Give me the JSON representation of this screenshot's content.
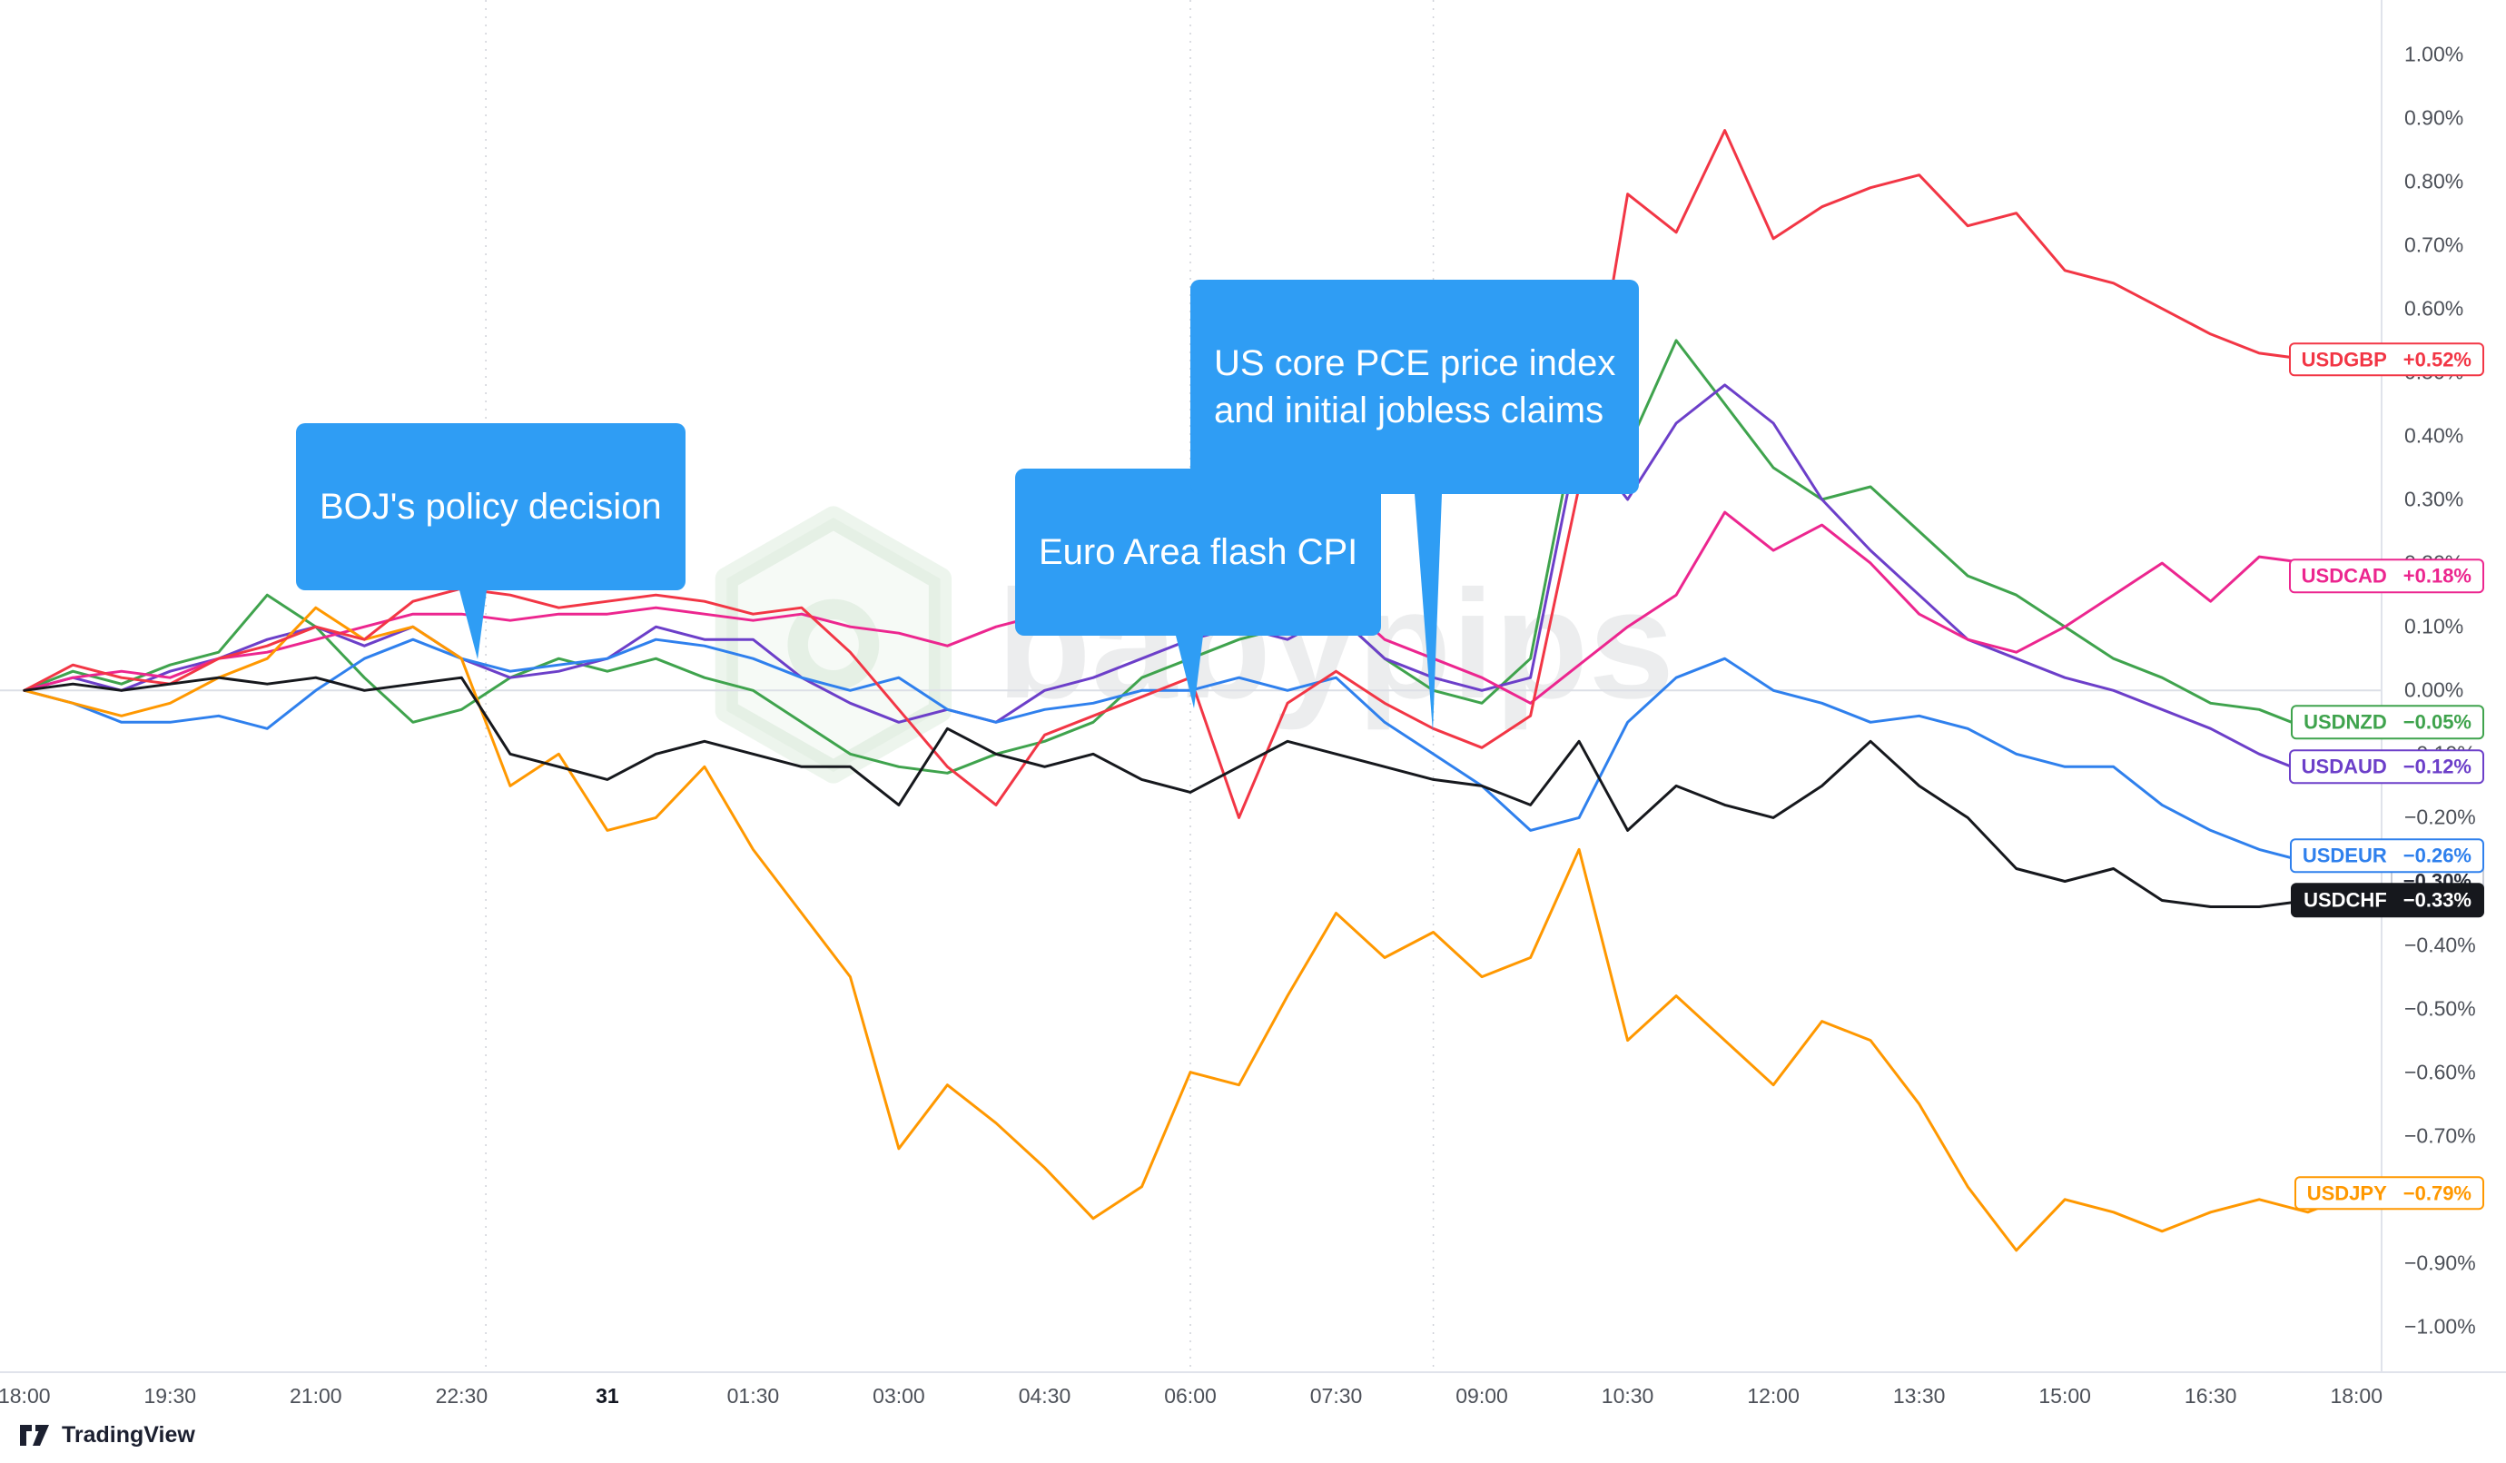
{
  "annotation_color": "#2f9df4",
  "watermark": {
    "text": "babypips"
  },
  "footer": {
    "logo_text": "TradingView"
  },
  "chart_data": {
    "type": "line",
    "title": "",
    "xlabel": "",
    "ylabel": "",
    "xlim": [
      -0.25,
      24.25
    ],
    "ylim": [
      -1.07,
      1.085
    ],
    "grid": "zero-line and event verticals only",
    "legend_position": "right-edge price labels",
    "x_unit": "hours since 18:00",
    "x_start": 0,
    "x_step": 0.5,
    "x_ticks": [
      {
        "t": 0,
        "label": "18:00"
      },
      {
        "t": 1.5,
        "label": "19:30"
      },
      {
        "t": 3,
        "label": "21:00"
      },
      {
        "t": 4.5,
        "label": "22:30"
      },
      {
        "t": 6,
        "label": "31",
        "bold": true
      },
      {
        "t": 7.5,
        "label": "01:30"
      },
      {
        "t": 9,
        "label": "03:00"
      },
      {
        "t": 10.5,
        "label": "04:30"
      },
      {
        "t": 12,
        "label": "06:00"
      },
      {
        "t": 13.5,
        "label": "07:30"
      },
      {
        "t": 15,
        "label": "09:00"
      },
      {
        "t": 16.5,
        "label": "10:30"
      },
      {
        "t": 18,
        "label": "12:00"
      },
      {
        "t": 19.5,
        "label": "13:30"
      },
      {
        "t": 21,
        "label": "15:00"
      },
      {
        "t": 22.5,
        "label": "16:30"
      },
      {
        "t": 24,
        "label": "18:00"
      }
    ],
    "y_ticks": [
      {
        "v": 1.0,
        "label": "1.00%"
      },
      {
        "v": 0.9,
        "label": "0.90%"
      },
      {
        "v": 0.8,
        "label": "0.80%"
      },
      {
        "v": 0.7,
        "label": "0.70%"
      },
      {
        "v": 0.6,
        "label": "0.60%"
      },
      {
        "v": 0.5,
        "label": "0.50%"
      },
      {
        "v": 0.4,
        "label": "0.40%"
      },
      {
        "v": 0.3,
        "label": "0.30%"
      },
      {
        "v": 0.2,
        "label": "0.20%"
      },
      {
        "v": 0.1,
        "label": "0.10%"
      },
      {
        "v": 0.0,
        "label": "0.00%"
      },
      {
        "v": -0.1,
        "label": "−0.10%"
      },
      {
        "v": -0.2,
        "label": "−0.20%"
      },
      {
        "v": -0.3,
        "label": "−0.30%"
      },
      {
        "v": -0.4,
        "label": "−0.40%"
      },
      {
        "v": -0.5,
        "label": "−0.50%"
      },
      {
        "v": -0.6,
        "label": "−0.60%"
      },
      {
        "v": -0.7,
        "label": "−0.70%"
      },
      {
        "v": -0.8,
        "label": "−0.80%"
      },
      {
        "v": -0.9,
        "label": "−0.90%"
      },
      {
        "v": -1.0,
        "label": "−1.00%"
      }
    ],
    "event_vlines": [
      4.75,
      12,
      14.5
    ],
    "annotations": [
      {
        "text": "BOJ's policy decision",
        "t": 4.75
      },
      {
        "text": "Euro Area flash CPI",
        "t": 12
      },
      {
        "text": "US core PCE price index\nand initial jobless claims",
        "t": 14.5
      }
    ],
    "value_marker": {
      "label": "−0.30%",
      "v": -0.3
    },
    "series": [
      {
        "name": "USDNZD",
        "color": "#3fa34d",
        "change_label": "−0.05%",
        "label_style": "outline",
        "values": [
          0.0,
          0.03,
          0.01,
          0.04,
          0.06,
          0.15,
          0.1,
          0.02,
          -0.05,
          -0.03,
          0.02,
          0.05,
          0.03,
          0.05,
          0.02,
          0.0,
          -0.05,
          -0.1,
          -0.12,
          -0.13,
          -0.1,
          -0.08,
          -0.05,
          0.02,
          0.05,
          0.08,
          0.1,
          0.12,
          0.05,
          0.0,
          -0.02,
          0.05,
          0.44,
          0.38,
          0.55,
          0.45,
          0.35,
          0.3,
          0.32,
          0.25,
          0.18,
          0.15,
          0.1,
          0.05,
          0.02,
          -0.02,
          -0.03,
          -0.06,
          -0.05
        ]
      },
      {
        "name": "USDAUD",
        "color": "#6c3fc9",
        "change_label": "−0.12%",
        "label_style": "outline",
        "values": [
          0.0,
          0.02,
          0.0,
          0.03,
          0.05,
          0.08,
          0.1,
          0.07,
          0.1,
          0.05,
          0.02,
          0.03,
          0.05,
          0.1,
          0.08,
          0.08,
          0.02,
          -0.02,
          -0.05,
          -0.03,
          -0.05,
          0.0,
          0.02,
          0.05,
          0.08,
          0.1,
          0.08,
          0.12,
          0.05,
          0.02,
          0.0,
          0.02,
          0.4,
          0.3,
          0.42,
          0.48,
          0.42,
          0.3,
          0.22,
          0.15,
          0.08,
          0.05,
          0.02,
          0.0,
          -0.03,
          -0.06,
          -0.1,
          -0.13,
          -0.12
        ]
      },
      {
        "name": "USDEUR",
        "color": "#2f80ed",
        "change_label": "−0.26%",
        "label_style": "outline",
        "values": [
          0.0,
          -0.02,
          -0.05,
          -0.05,
          -0.04,
          -0.06,
          0.0,
          0.05,
          0.08,
          0.05,
          0.03,
          0.04,
          0.05,
          0.08,
          0.07,
          0.05,
          0.02,
          0.0,
          0.02,
          -0.03,
          -0.05,
          -0.03,
          -0.02,
          0.0,
          0.0,
          0.02,
          0.0,
          0.02,
          -0.05,
          -0.1,
          -0.15,
          -0.22,
          -0.2,
          -0.05,
          0.02,
          0.05,
          0.0,
          -0.02,
          -0.05,
          -0.04,
          -0.06,
          -0.1,
          -0.12,
          -0.12,
          -0.18,
          -0.22,
          -0.25,
          -0.27,
          -0.26
        ]
      },
      {
        "name": "USDCAD",
        "color": "#ec268f",
        "change_label": "+0.18%",
        "label_style": "outline",
        "values": [
          0.0,
          0.02,
          0.03,
          0.02,
          0.05,
          0.06,
          0.08,
          0.1,
          0.12,
          0.12,
          0.11,
          0.12,
          0.12,
          0.13,
          0.12,
          0.11,
          0.12,
          0.1,
          0.09,
          0.07,
          0.1,
          0.12,
          0.11,
          0.13,
          0.12,
          0.13,
          0.15,
          0.15,
          0.08,
          0.05,
          0.02,
          -0.02,
          0.04,
          0.1,
          0.15,
          0.28,
          0.22,
          0.26,
          0.2,
          0.12,
          0.08,
          0.06,
          0.1,
          0.15,
          0.2,
          0.14,
          0.21,
          0.2,
          0.18
        ]
      },
      {
        "name": "USDJPY",
        "color": "#ff9800",
        "change_label": "−0.79%",
        "label_style": "outline",
        "values": [
          0.0,
          -0.02,
          -0.04,
          -0.02,
          0.02,
          0.05,
          0.13,
          0.08,
          0.1,
          0.05,
          -0.15,
          -0.1,
          -0.22,
          -0.2,
          -0.12,
          -0.25,
          -0.35,
          -0.45,
          -0.72,
          -0.62,
          -0.68,
          -0.75,
          -0.83,
          -0.78,
          -0.6,
          -0.62,
          -0.48,
          -0.35,
          -0.42,
          -0.38,
          -0.45,
          -0.42,
          -0.25,
          -0.55,
          -0.48,
          -0.55,
          -0.62,
          -0.52,
          -0.55,
          -0.65,
          -0.78,
          -0.88,
          -0.8,
          -0.82,
          -0.85,
          -0.82,
          -0.8,
          -0.82,
          -0.79
        ]
      },
      {
        "name": "USDGBP",
        "color": "#f23645",
        "change_label": "+0.52%",
        "label_style": "outline",
        "values": [
          0.0,
          0.04,
          0.02,
          0.01,
          0.05,
          0.07,
          0.1,
          0.08,
          0.14,
          0.16,
          0.15,
          0.13,
          0.14,
          0.15,
          0.14,
          0.12,
          0.13,
          0.06,
          -0.03,
          -0.12,
          -0.18,
          -0.07,
          -0.04,
          -0.01,
          0.02,
          -0.2,
          -0.02,
          0.03,
          -0.02,
          -0.06,
          -0.09,
          -0.04,
          0.32,
          0.78,
          0.72,
          0.88,
          0.71,
          0.76,
          0.79,
          0.81,
          0.73,
          0.75,
          0.66,
          0.64,
          0.6,
          0.56,
          0.53,
          0.52,
          0.52
        ]
      },
      {
        "name": "USDCHF",
        "color": "#16181d",
        "change_label": "−0.33%",
        "label_style": "solid",
        "values": [
          0.0,
          0.01,
          0.0,
          0.01,
          0.02,
          0.01,
          0.02,
          0.0,
          0.01,
          0.02,
          -0.1,
          -0.12,
          -0.14,
          -0.1,
          -0.08,
          -0.1,
          -0.12,
          -0.12,
          -0.18,
          -0.06,
          -0.1,
          -0.12,
          -0.1,
          -0.14,
          -0.16,
          -0.12,
          -0.08,
          -0.1,
          -0.12,
          -0.14,
          -0.15,
          -0.18,
          -0.08,
          -0.22,
          -0.15,
          -0.18,
          -0.2,
          -0.15,
          -0.08,
          -0.15,
          -0.2,
          -0.28,
          -0.3,
          -0.28,
          -0.33,
          -0.34,
          -0.34,
          -0.33,
          -0.33
        ]
      }
    ]
  }
}
